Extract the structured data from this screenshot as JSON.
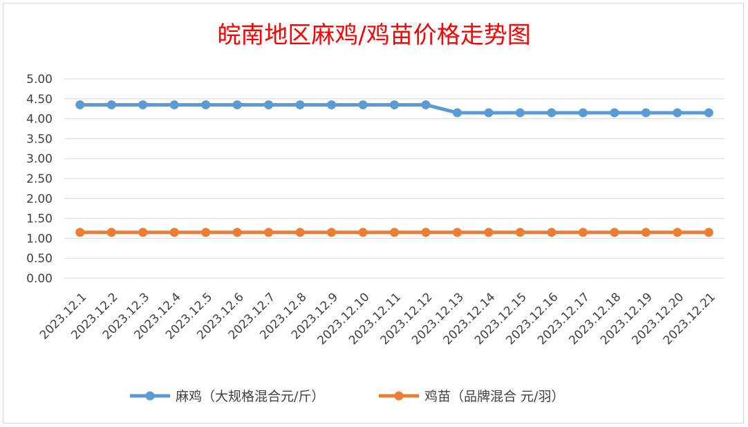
{
  "chart_data": {
    "type": "line",
    "title": "皖南地区麻鸡/鸡苗价格走势图",
    "xlabel": "",
    "ylabel": "",
    "ylim": [
      0,
      5
    ],
    "y_ticks": [
      "0.00",
      "0.50",
      "1.00",
      "1.50",
      "2.00",
      "2.50",
      "3.00",
      "3.50",
      "4.00",
      "4.50",
      "5.00"
    ],
    "grid": true,
    "legend_position": "bottom",
    "categories": [
      "2023.12.1",
      "2023.12.2",
      "2023.12.3",
      "2023.12.4",
      "2023.12.5",
      "2023.12.6",
      "2023.12.7",
      "2023.12.8",
      "2023.12.9",
      "2023.12.10",
      "2023.12.11",
      "2023.12.12",
      "2023.12.13",
      "2023.12.14",
      "2023.12.15",
      "2023.12.16",
      "2023.12.17",
      "2023.12.18",
      "2023.12.19",
      "2023.12.20",
      "2023.12.21"
    ],
    "series": [
      {
        "name": "麻鸡（大规格混合元/斤）",
        "color": "#5b9bd5",
        "values": [
          4.35,
          4.35,
          4.35,
          4.35,
          4.35,
          4.35,
          4.35,
          4.35,
          4.35,
          4.35,
          4.35,
          4.35,
          4.15,
          4.15,
          4.15,
          4.15,
          4.15,
          4.15,
          4.15,
          4.15,
          4.15
        ]
      },
      {
        "name": "鸡苗（品牌混合 元/羽）",
        "color": "#ed7d31",
        "values": [
          1.15,
          1.15,
          1.15,
          1.15,
          1.15,
          1.15,
          1.15,
          1.15,
          1.15,
          1.15,
          1.15,
          1.15,
          1.15,
          1.15,
          1.15,
          1.15,
          1.15,
          1.15,
          1.15,
          1.15,
          1.15
        ]
      }
    ]
  }
}
